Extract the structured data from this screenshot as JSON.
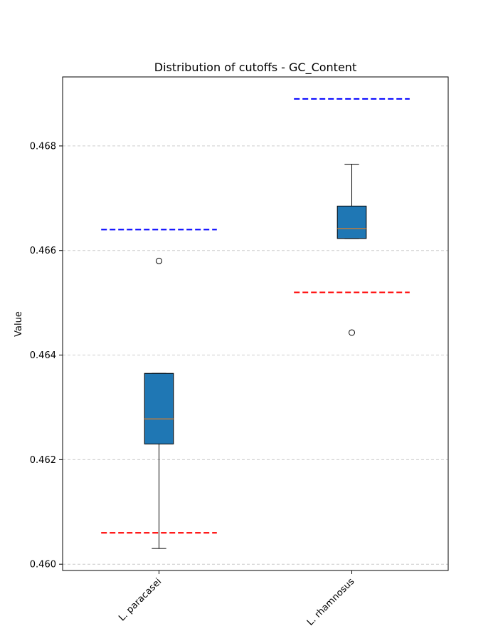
{
  "chart_data": {
    "type": "box",
    "title": "Distribution of cutoffs - GC_Content",
    "xlabel": "",
    "ylabel": "Value",
    "ylim": [
      0.45988,
      0.46932
    ],
    "yticks": [
      0.46,
      0.462,
      0.464,
      0.466,
      0.468
    ],
    "ytick_labels": [
      "0.460",
      "0.462",
      "0.464",
      "0.466",
      "0.468"
    ],
    "grid": "y-dashed",
    "categories": [
      "L. paracasei",
      "L. rhamnosus"
    ],
    "boxes": [
      {
        "category": "L. paracasei",
        "whisker_low": 0.4603,
        "q1": 0.4623,
        "median": 0.46278,
        "q3": 0.46365,
        "whisker_high": 0.46365,
        "outliers": [
          0.4658
        ]
      },
      {
        "category": "L. rhamnosus",
        "whisker_low": 0.46623,
        "q1": 0.46623,
        "median": 0.46642,
        "q3": 0.46685,
        "whisker_high": 0.46765,
        "outliers": [
          0.46443
        ]
      }
    ],
    "reference_lines": [
      {
        "category": "L. paracasei",
        "color": "#0000ff",
        "value": 0.4664
      },
      {
        "category": "L. paracasei",
        "color": "#ff0000",
        "value": 0.4606
      },
      {
        "category": "L. rhamnosus",
        "color": "#0000ff",
        "value": 0.4689
      },
      {
        "category": "L. rhamnosus",
        "color": "#ff0000",
        "value": 0.4652
      }
    ],
    "colors": {
      "box_fill": "#1f77b4",
      "median": "#ff7f0e",
      "grid": "#cccccc"
    }
  }
}
